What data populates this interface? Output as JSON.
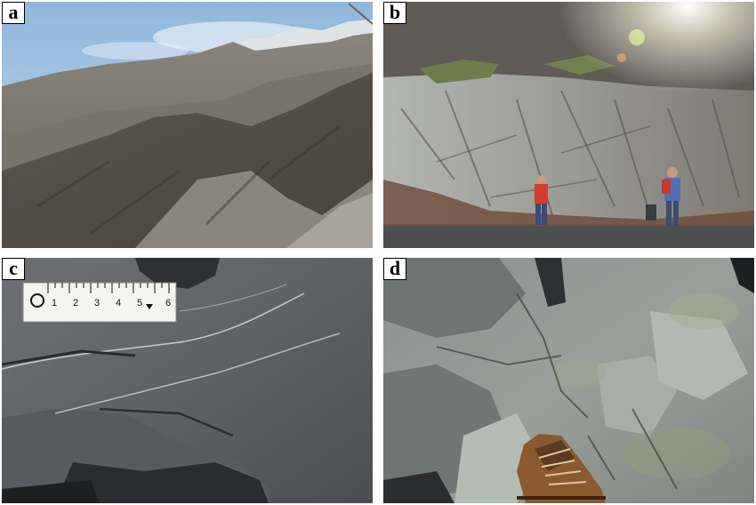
{
  "panels": [
    {
      "label": "a"
    },
    {
      "label": "b"
    },
    {
      "label": "c",
      "ruler": {
        "ticks": [
          "1",
          "2",
          "3",
          "4",
          "5",
          "6"
        ]
      }
    },
    {
      "label": "d"
    }
  ],
  "colors": {
    "sky": "#a9c9e6",
    "mountain": "#6f6a64",
    "outcrop": "#8d8d88",
    "rock": "#5f6164",
    "background": "#ffffff"
  }
}
